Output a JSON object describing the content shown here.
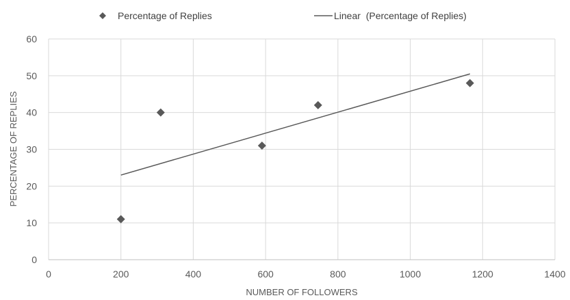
{
  "chart_data": {
    "type": "scatter",
    "xlabel": "NUMBER OF FOLLOWERS",
    "ylabel": "PERCENTAGE OF REPLIES",
    "xlim": [
      0,
      1400
    ],
    "ylim": [
      0,
      60
    ],
    "xticks": [
      "0",
      "200",
      "400",
      "600",
      "800",
      "1000",
      "1200",
      "1400"
    ],
    "yticks": [
      "0",
      "10",
      "20",
      "30",
      "40",
      "50",
      "60"
    ],
    "grid": true,
    "legend_position": "top",
    "series": [
      {
        "name": "Percentage of Replies",
        "marker": "diamond",
        "color": "#595959",
        "points": [
          {
            "x": 200,
            "y": 11
          },
          {
            "x": 310,
            "y": 40
          },
          {
            "x": 590,
            "y": 31
          },
          {
            "x": 745,
            "y": 42
          },
          {
            "x": 1165,
            "y": 48
          }
        ]
      }
    ],
    "trendline": {
      "name": "Linear  (Percentage of Replies)",
      "type": "linear",
      "color": "#595959",
      "from": {
        "x": 200,
        "y": 23
      },
      "to": {
        "x": 1165,
        "y": 50.5
      }
    }
  }
}
